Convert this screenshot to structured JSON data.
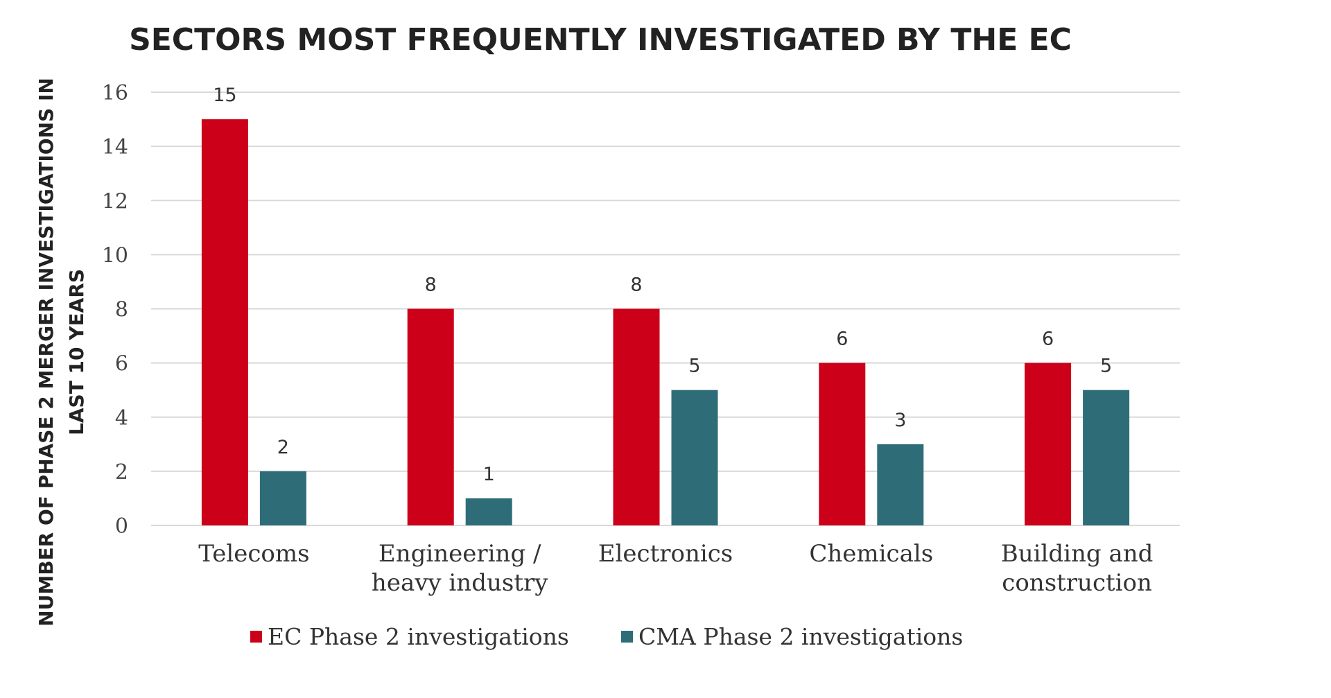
{
  "chart_data": {
    "type": "bar",
    "title": "SECTORS MOST FREQUENTLY INVESTIGATED BY THE EC",
    "ylabel_lines": [
      "NUMBER OF PHASE 2 MERGER INVESTIGATIONS IN",
      "LAST 10 YEARS"
    ],
    "xlabel": "",
    "ylim": [
      0,
      16
    ],
    "yticks": [
      0,
      2,
      4,
      6,
      8,
      10,
      12,
      14,
      16
    ],
    "grid": true,
    "legend_position": "bottom",
    "categories": [
      [
        "Telecoms"
      ],
      [
        "Engineering /",
        "heavy industry"
      ],
      [
        "Electronics"
      ],
      [
        "Chemicals"
      ],
      [
        "Building and",
        "construction"
      ]
    ],
    "series": [
      {
        "name": "EC Phase 2 investigations",
        "color": "#cc0018",
        "values": [
          15,
          8,
          8,
          6,
          6
        ]
      },
      {
        "name": "CMA Phase 2 investigations",
        "color": "#2e6d78",
        "values": [
          2,
          1,
          5,
          3,
          5
        ]
      }
    ]
  }
}
